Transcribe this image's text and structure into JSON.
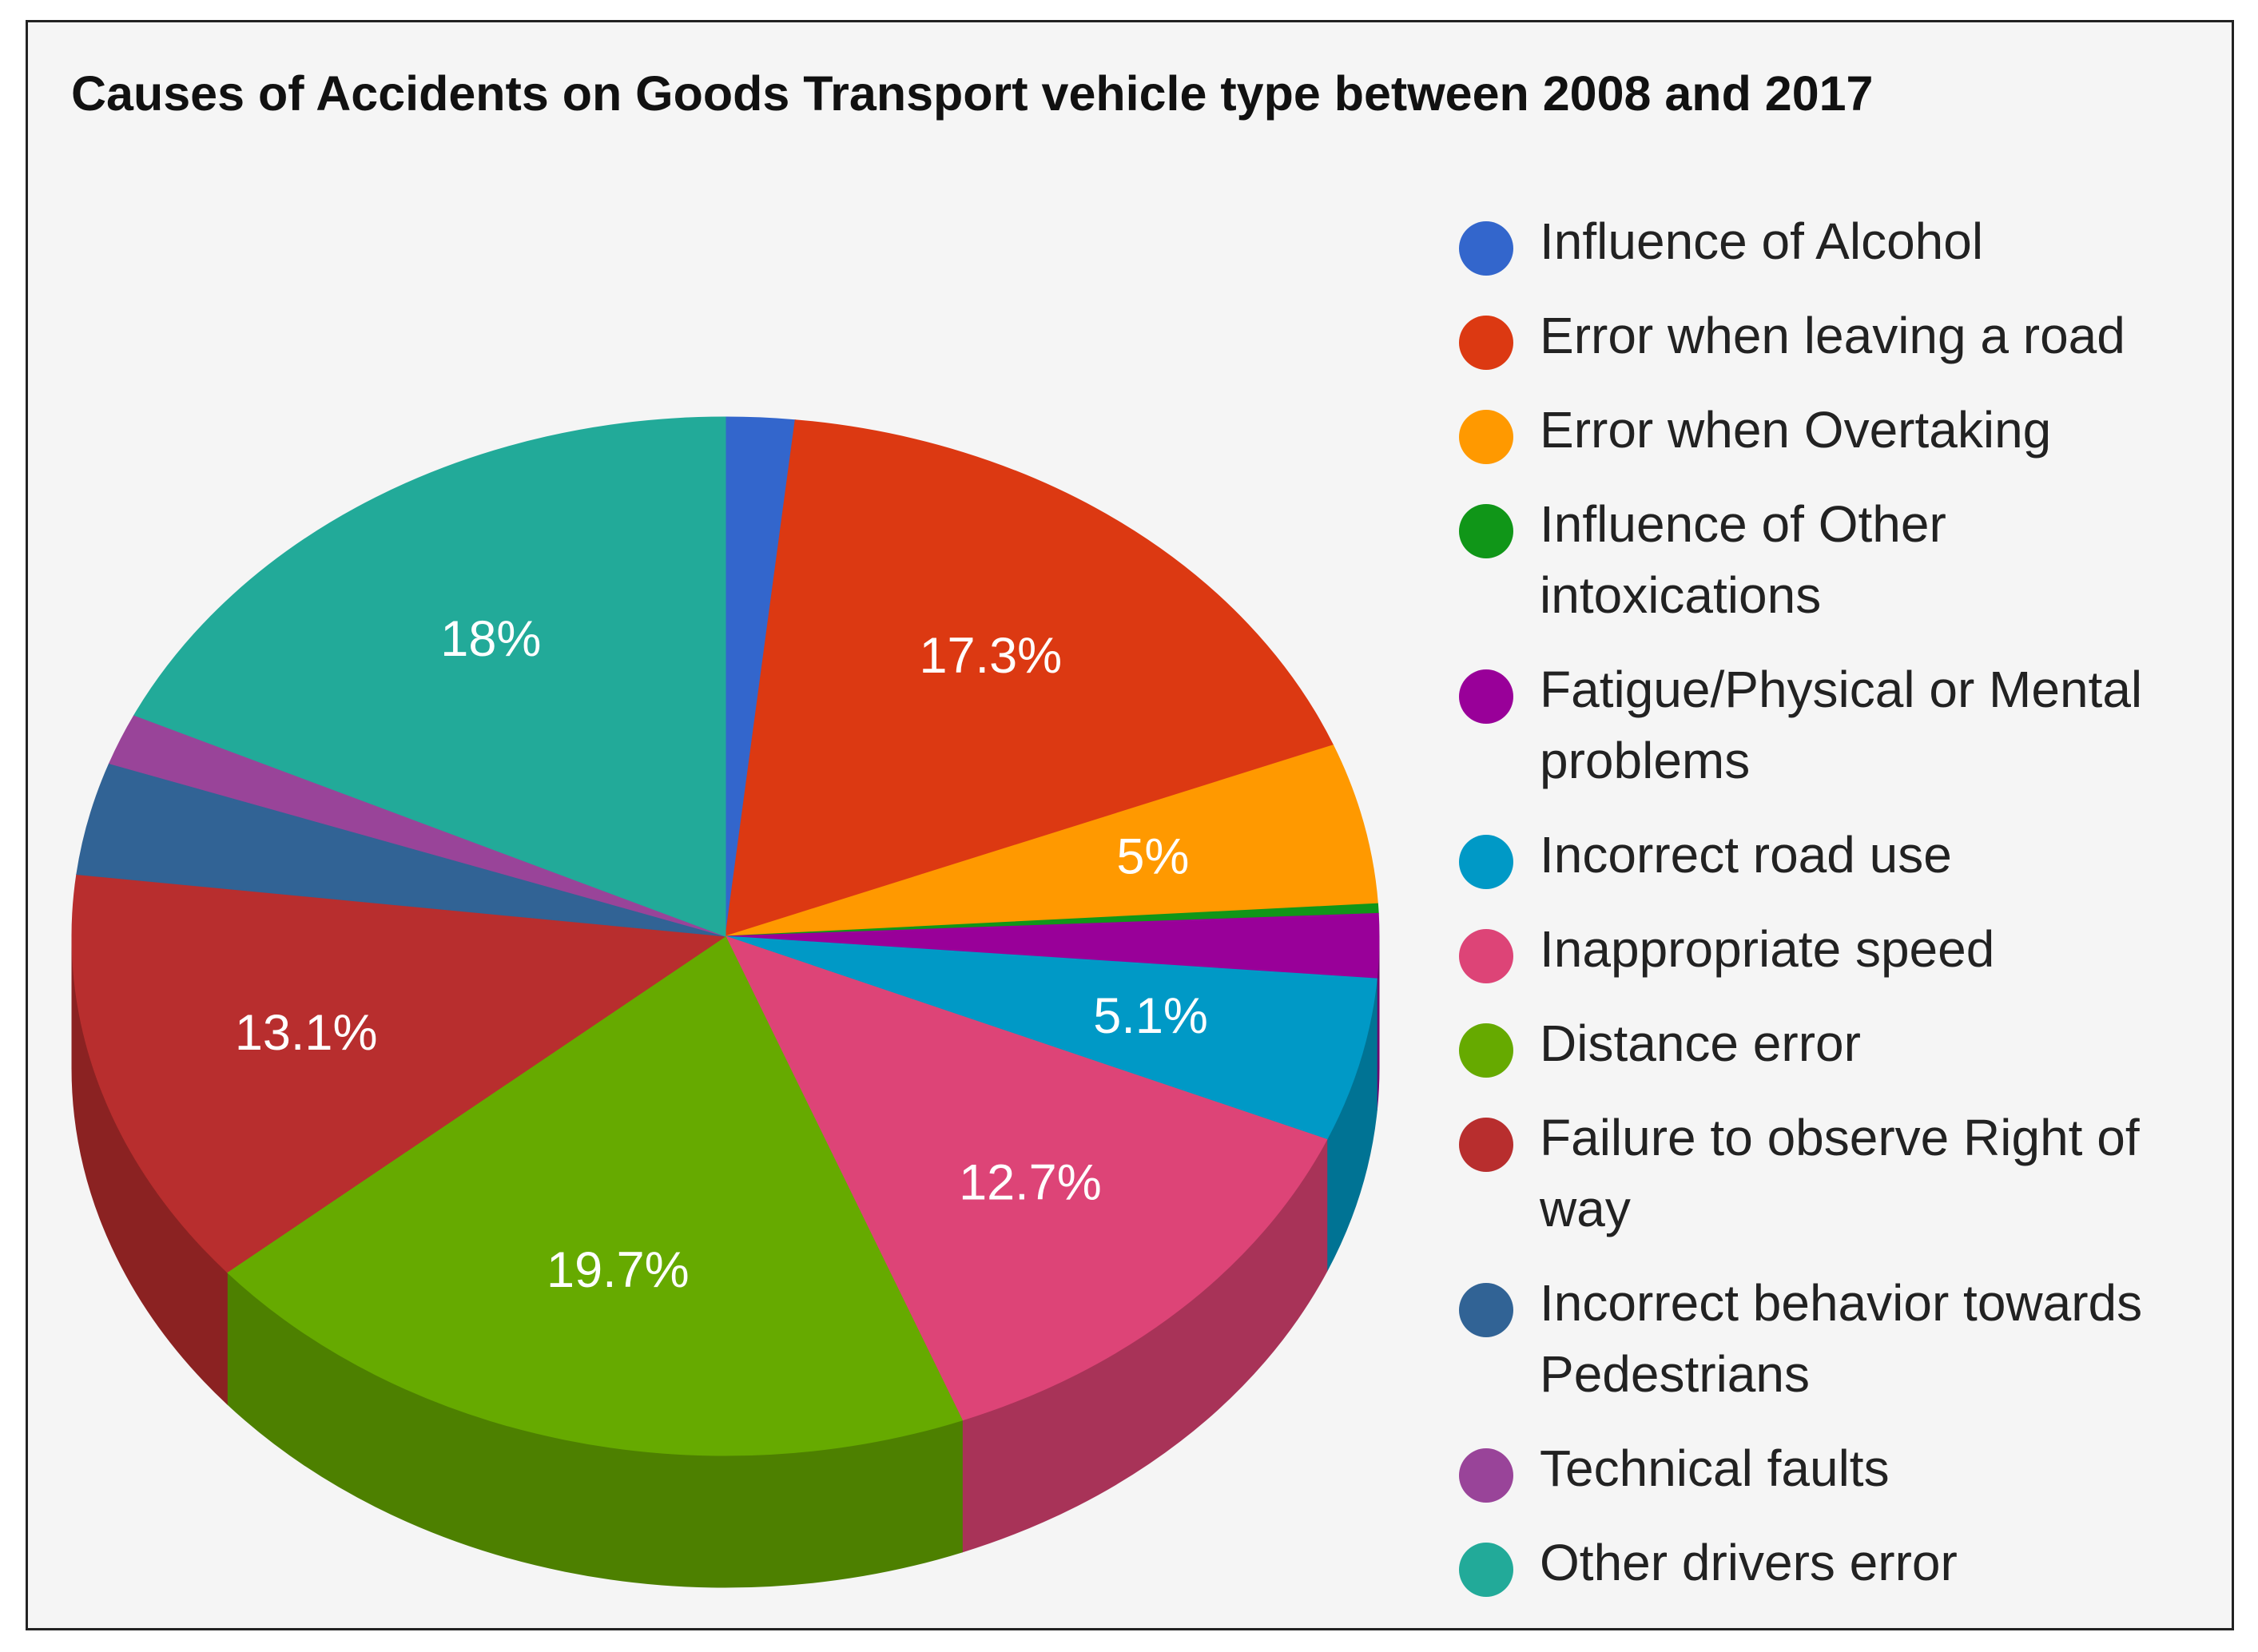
{
  "chart_data": {
    "type": "pie",
    "title": "Causes of Accidents on Goods Transport vehicle type between 2008 and 2017",
    "legend_position": "right",
    "slices": [
      {
        "label": "Influence of Alcohol",
        "value": 1.7,
        "display": "",
        "color": "#3366cc",
        "side": "#2647a0"
      },
      {
        "label": "Error when leaving a road",
        "value": 17.3,
        "display": "17.3%",
        "color": "#dc3912",
        "side": "#a82a0d"
      },
      {
        "label": "Error when Overtaking",
        "value": 5.0,
        "display": "5%",
        "color": "#ff9900",
        "side": "#c47600"
      },
      {
        "label": "Influence of Other intoxications",
        "value": 0.3,
        "display": "",
        "color": "#109618",
        "side": "#0b6d11"
      },
      {
        "label": "Fatigue/Physical or Mental problems",
        "value": 2.0,
        "display": "",
        "color": "#990099",
        "side": "#6e006e"
      },
      {
        "label": "Incorrect road use",
        "value": 5.1,
        "display": "5.1%",
        "color": "#0099c6",
        "side": "#007394"
      },
      {
        "label": "Inappropriate speed",
        "value": 12.7,
        "display": "12.7%",
        "color": "#dd4477",
        "side": "#a83358"
      },
      {
        "label": "Distance error",
        "value": 19.7,
        "display": "19.7%",
        "color": "#66aa00",
        "side": "#4d8000"
      },
      {
        "label": "Failure to observe Right of way",
        "value": 13.1,
        "display": "13.1%",
        "color": "#b82e2e",
        "side": "#8b2222"
      },
      {
        "label": "Incorrect behavior towards Pedestrians",
        "value": 3.5,
        "display": "",
        "color": "#316395",
        "side": "#244a70"
      },
      {
        "label": "Technical faults",
        "value": 1.6,
        "display": "",
        "color": "#994499",
        "side": "#733373"
      },
      {
        "label": "Other drivers error",
        "value": 18.0,
        "display": "18%",
        "color": "#22aa99",
        "side": "#198073"
      }
    ]
  },
  "legend": {
    "items": [
      {
        "lines": [
          "Influence of Alcohol"
        ]
      },
      {
        "lines": [
          "Error when leaving a road"
        ]
      },
      {
        "lines": [
          "Error when Overtaking"
        ]
      },
      {
        "lines": [
          "Influence of Other",
          "intoxications"
        ]
      },
      {
        "lines": [
          "Fatigue/Physical or Mental",
          "problems"
        ]
      },
      {
        "lines": [
          "Incorrect road use"
        ]
      },
      {
        "lines": [
          "Inappropriate speed"
        ]
      },
      {
        "lines": [
          "Distance error"
        ]
      },
      {
        "lines": [
          "Failure to observe Right of",
          "way"
        ]
      },
      {
        "lines": [
          "Incorrect behavior towards",
          "Pedestrians"
        ]
      },
      {
        "lines": [
          "Technical faults"
        ]
      },
      {
        "lines": [
          "Other drivers error"
        ]
      }
    ]
  }
}
